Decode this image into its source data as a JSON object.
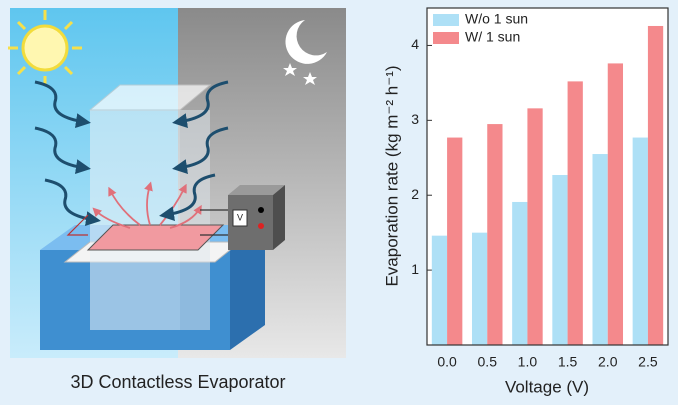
{
  "caption": "3D Contactless Evaporator",
  "chart_data": {
    "type": "bar",
    "x_label": "Voltage (V)",
    "y_label": "Evaporation rate (kg m⁻² h⁻¹)",
    "categories": [
      "0.0",
      "0.5",
      "1.0",
      "1.5",
      "2.0",
      "2.5"
    ],
    "series": [
      {
        "name": "W/o 1 sun",
        "color": "#aee0f6",
        "values": [
          1.46,
          1.5,
          1.91,
          2.27,
          2.55,
          2.77
        ]
      },
      {
        "name": "W/ 1 sun",
        "color": "#f4898c",
        "values": [
          2.77,
          2.95,
          3.16,
          3.52,
          3.76,
          4.26
        ]
      }
    ],
    "ylim": [
      0,
      4.5
    ],
    "yticks": [
      1,
      2,
      3,
      4
    ],
    "legend": "upper-left",
    "grid": false
  }
}
